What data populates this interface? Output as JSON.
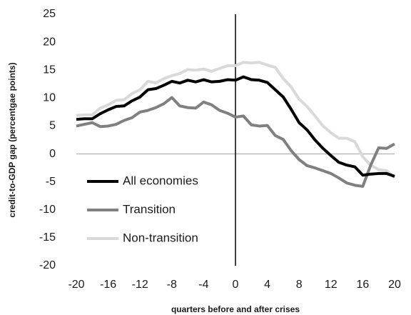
{
  "chart_data": {
    "type": "line",
    "x_label": "quarters before and after crises",
    "y_label": "credit-to-GDP gap (percentgae points)",
    "x": [
      -20,
      -19,
      -18,
      -17,
      -16,
      -15,
      -14,
      -13,
      -12,
      -11,
      -10,
      -9,
      -8,
      -7,
      -6,
      -5,
      -4,
      -3,
      -2,
      -1,
      0,
      1,
      2,
      3,
      4,
      5,
      6,
      7,
      8,
      9,
      10,
      11,
      12,
      13,
      14,
      15,
      16,
      17,
      18,
      19,
      20
    ],
    "series": [
      {
        "name": "All economies",
        "color": "#000000",
        "values": [
          6.2,
          6.3,
          6.3,
          7.2,
          7.9,
          8.5,
          8.6,
          9.5,
          10.2,
          11.5,
          11.7,
          12.3,
          13.0,
          12.7,
          13.2,
          12.9,
          13.3,
          12.9,
          13.0,
          13.3,
          13.2,
          13.8,
          13.3,
          13.2,
          12.8,
          11.5,
          10.2,
          8.0,
          5.6,
          4.3,
          2.5,
          1.0,
          -0.3,
          -1.5,
          -2.0,
          -2.3,
          -3.8,
          -3.6,
          -3.5,
          -3.5,
          -4.0
        ]
      },
      {
        "name": "Transition",
        "color": "#808080",
        "values": [
          5.0,
          5.3,
          5.6,
          4.9,
          5.0,
          5.3,
          6.0,
          6.5,
          7.5,
          7.8,
          8.3,
          9.0,
          10.1,
          8.6,
          8.3,
          8.2,
          9.3,
          8.8,
          7.8,
          7.3,
          6.6,
          6.8,
          5.2,
          5.0,
          5.1,
          3.3,
          2.6,
          0.6,
          -1.0,
          -2.1,
          -2.5,
          -3.0,
          -3.5,
          -4.3,
          -5.2,
          -5.6,
          -5.8,
          -2.0,
          1.1,
          1.0,
          1.8
        ]
      },
      {
        "name": "Non-transition",
        "color": "#d9d9d9",
        "values": [
          6.9,
          7.0,
          7.0,
          8.2,
          8.8,
          9.6,
          9.7,
          10.8,
          11.5,
          13.0,
          12.7,
          13.5,
          14.0,
          14.4,
          15.1,
          15.0,
          15.2,
          14.8,
          15.3,
          15.8,
          15.8,
          16.4,
          16.3,
          16.4,
          15.9,
          15.5,
          13.5,
          12.0,
          9.8,
          8.5,
          6.8,
          5.0,
          3.8,
          2.8,
          2.8,
          2.2,
          -0.5,
          -2.0,
          -2.8,
          -3.0,
          -4.2
        ]
      }
    ],
    "xlim": [
      -20,
      20
    ],
    "xticks": [
      -20,
      -16,
      -12,
      -8,
      -4,
      0,
      4,
      8,
      12,
      16,
      20
    ],
    "ylim": [
      -20,
      25
    ],
    "yticks": [
      -20,
      -15,
      -10,
      -5,
      0,
      5,
      10,
      15,
      20,
      25
    ],
    "grid": false,
    "legend": "lower left"
  }
}
